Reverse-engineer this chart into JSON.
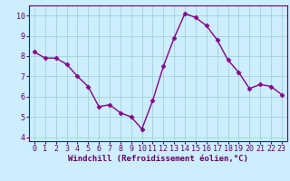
{
  "x": [
    0,
    1,
    2,
    3,
    4,
    5,
    6,
    7,
    8,
    9,
    10,
    11,
    12,
    13,
    14,
    15,
    16,
    17,
    18,
    19,
    20,
    21,
    22,
    23
  ],
  "y": [
    8.2,
    7.9,
    7.9,
    7.6,
    7.0,
    6.5,
    5.5,
    5.6,
    5.2,
    5.0,
    4.4,
    5.8,
    7.5,
    8.9,
    10.1,
    9.9,
    9.5,
    8.8,
    7.8,
    7.2,
    6.4,
    6.6,
    6.5,
    6.1
  ],
  "line_color": "#880088",
  "marker": "D",
  "marker_size": 2.5,
  "bg_color": "#cceeff",
  "grid_color": "#99cccc",
  "xlabel": "Windchill (Refroidissement éolien,°C)",
  "xlabel_color": "#660066",
  "xlabel_fontsize": 6.5,
  "tick_color": "#660066",
  "tick_fontsize": 6,
  "ylim": [
    3.8,
    10.5
  ],
  "yticks": [
    4,
    5,
    6,
    7,
    8,
    9,
    10
  ],
  "xlim": [
    -0.5,
    23.5
  ],
  "xticks": [
    0,
    1,
    2,
    3,
    4,
    5,
    6,
    7,
    8,
    9,
    10,
    11,
    12,
    13,
    14,
    15,
    16,
    17,
    18,
    19,
    20,
    21,
    22,
    23
  ],
  "spine_color": "#660066",
  "linewidth": 1.0
}
